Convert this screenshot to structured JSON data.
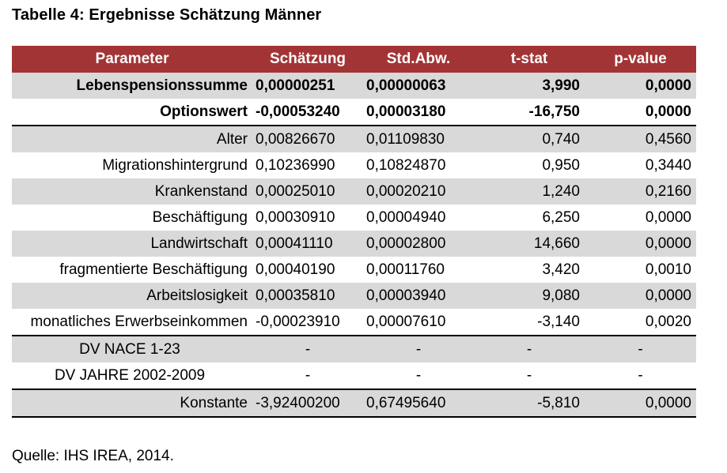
{
  "title": "Tabelle 4: Ergebnisse Schätzung Männer",
  "table": {
    "headers": [
      "Parameter",
      "Schätzung",
      "Std.Abw.",
      "t-stat",
      "p-value"
    ],
    "rows": [
      {
        "param": "Lebenspensionssumme",
        "est": "0,00000251",
        "sd": "0,00000063",
        "t": "3,990",
        "p": "0,0000"
      },
      {
        "param": "Optionswert",
        "est": "-0,00053240",
        "sd": "0,00003180",
        "t": "-16,750",
        "p": "0,0000"
      },
      {
        "param": "Alter",
        "est": "0,00826670",
        "sd": "0,01109830",
        "t": "0,740",
        "p": "0,4560"
      },
      {
        "param": "Migrationshintergrund",
        "est": "0,10236990",
        "sd": "0,10824870",
        "t": "0,950",
        "p": "0,3440"
      },
      {
        "param": "Krankenstand",
        "est": "0,00025010",
        "sd": "0,00020210",
        "t": "1,240",
        "p": "0,2160"
      },
      {
        "param": "Beschäftigung",
        "est": "0,00030910",
        "sd": "0,00004940",
        "t": "6,250",
        "p": "0,0000"
      },
      {
        "param": "Landwirtschaft",
        "est": "0,00041110",
        "sd": "0,00002800",
        "t": "14,660",
        "p": "0,0000"
      },
      {
        "param": "fragmentierte Beschäftigung",
        "est": "0,00040190",
        "sd": "0,00011760",
        "t": "3,420",
        "p": "0,0010"
      },
      {
        "param": "Arbeitslosigkeit",
        "est": "0,00035810",
        "sd": "0,00003940",
        "t": "9,080",
        "p": "0,0000"
      },
      {
        "param": "monatliches Erwerbseinkommen",
        "est": "-0,00023910",
        "sd": "0,00007610",
        "t": "-3,140",
        "p": "0,0020"
      },
      {
        "param": "DV NACE 1-23",
        "est": "-",
        "sd": "-",
        "t": "-",
        "p": "-"
      },
      {
        "param": "DV JAHRE 2002-2009",
        "est": "-",
        "sd": "-",
        "t": "-",
        "p": "-"
      },
      {
        "param": "Konstante",
        "est": "-3,92400200",
        "sd": "0,67495640",
        "t": "-5,810",
        "p": "0,0000"
      }
    ]
  },
  "source": "Quelle: IHS IREA, 2014.",
  "colors": {
    "header_bg": "#a33435",
    "row_shade": "#d9d9d9"
  }
}
